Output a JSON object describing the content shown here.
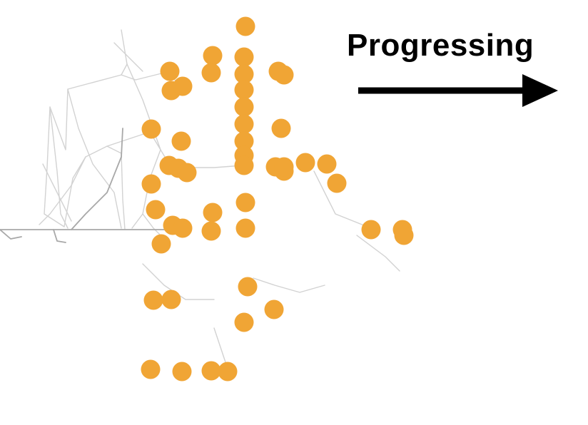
{
  "header": {
    "label": "Progressing"
  },
  "colors": {
    "dot": "#F0A535",
    "trace": "#cfcfcf",
    "trace_dark": "#a9a9a9",
    "arrow": "#000000"
  },
  "icons": {
    "arrow": "right-arrow-icon"
  }
}
